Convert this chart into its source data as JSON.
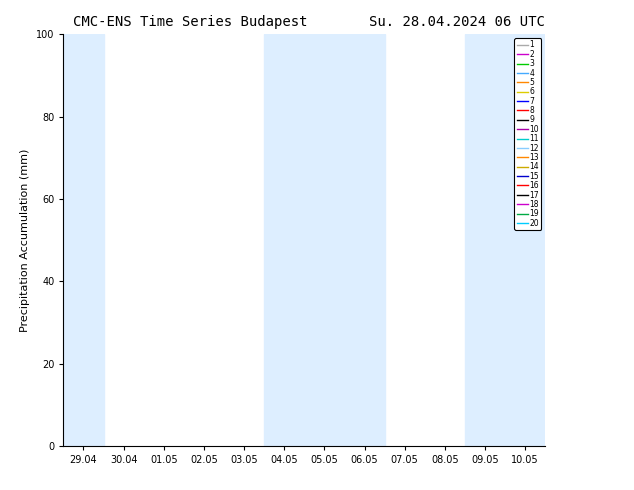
{
  "title_left": "CMC-ENS Time Series Budapest",
  "title_right": "Su. 28.04.2024 06 UTC",
  "ylabel": "Precipitation Accumulation (mm)",
  "ylim": [
    0,
    100
  ],
  "yticks": [
    0,
    20,
    40,
    60,
    80,
    100
  ],
  "xtick_labels": [
    "29.04",
    "30.04",
    "01.05",
    "02.05",
    "03.05",
    "04.05",
    "05.05",
    "06.05",
    "07.05",
    "08.05",
    "09.05",
    "10.05"
  ],
  "shade_color": "#ddeeff",
  "background_color": "#ffffff",
  "legend_colors": [
    "#aaaaaa",
    "#cc00cc",
    "#00cc00",
    "#44aaff",
    "#ff8800",
    "#ddcc00",
    "#0000ff",
    "#ff0000",
    "#000000",
    "#aa00aa",
    "#00cccc",
    "#88ccff",
    "#ff8800",
    "#ccaa00",
    "#0000cc",
    "#ff0000",
    "#000000",
    "#cc00cc",
    "#00aa44",
    "#00ccff"
  ],
  "legend_labels": [
    "1",
    "2",
    "3",
    "4",
    "5",
    "6",
    "7",
    "8",
    "9",
    "10",
    "11",
    "12",
    "13",
    "14",
    "15",
    "16",
    "17",
    "18",
    "19",
    "20"
  ],
  "title_fontsize": 10,
  "tick_fontsize": 7,
  "ylabel_fontsize": 8,
  "fig_width": 6.34,
  "fig_height": 4.9,
  "dpi": 100
}
